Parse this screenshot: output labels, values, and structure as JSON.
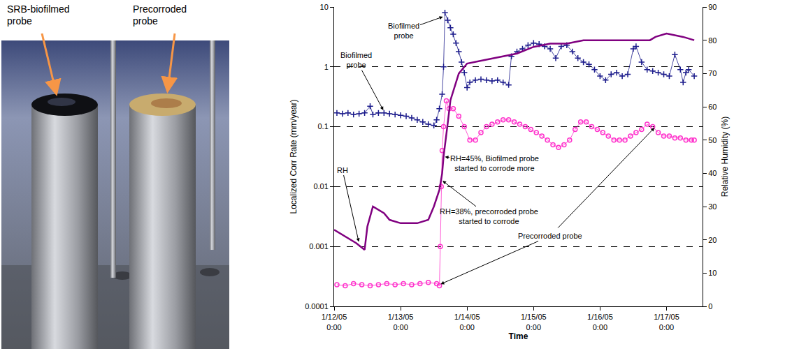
{
  "photo": {
    "labels": [
      "SRB-biofilmed probe",
      "Precorroded probe"
    ]
  },
  "chart_data": {
    "type": "line",
    "log": "y",
    "grid": true,
    "x_label": "Time",
    "y_label": "Localized Corr Rate (mm/year)",
    "y2_label": "Relative Humidity (%)",
    "xlim": [
      "2005-01-12 00:00",
      "2005-01-17 13:00"
    ],
    "xticks": [
      {
        "value": "2005-01-12 00:00",
        "label": "1/12/05 0:00"
      },
      {
        "value": "2005-01-13 00:00",
        "label": "1/13/05 0:00"
      },
      {
        "value": "2005-01-14 00:00",
        "label": "1/14/05 0:00"
      },
      {
        "value": "2005-01-15 00:00",
        "label": "1/15/05 0:00"
      },
      {
        "value": "2005-01-16 00:00",
        "label": "1/16/05 0:00"
      },
      {
        "value": "2005-01-17 00:00",
        "label": "1/17/05 0:00"
      }
    ],
    "ylim": [
      0.0001,
      10
    ],
    "yticks": [
      0.0001,
      0.001,
      0.01,
      0.1,
      1,
      10
    ],
    "y2lim": [
      0,
      90
    ],
    "y2ticks": [
      0,
      10,
      20,
      30,
      40,
      50,
      60,
      70,
      80,
      90
    ],
    "series": [
      {
        "name": "Biofilmed probe",
        "color": "#1c1c8c",
        "marker": "cross",
        "line_style": "solid",
        "x": [
          "2005-01-12 01:00",
          "2005-01-12 03:00",
          "2005-01-12 05:00",
          "2005-01-12 07:00",
          "2005-01-12 09:00",
          "2005-01-12 11:00",
          "2005-01-12 13:00",
          "2005-01-12 14:00",
          "2005-01-12 16:00",
          "2005-01-12 18:00",
          "2005-01-12 20:00",
          "2005-01-12 22:00",
          "2005-01-13 00:00",
          "2005-01-13 02:00",
          "2005-01-13 04:00",
          "2005-01-13 06:00",
          "2005-01-13 08:00",
          "2005-01-13 10:00",
          "2005-01-13 12:00",
          "2005-01-13 13:00",
          "2005-01-13 14:00",
          "2005-01-13 15:00",
          "2005-01-13 15:30",
          "2005-01-13 16:00",
          "2005-01-13 17:00",
          "2005-01-13 18:00",
          "2005-01-13 19:00",
          "2005-01-13 20:00",
          "2005-01-13 21:00",
          "2005-01-13 22:00",
          "2005-01-13 23:00",
          "2005-01-14 00:00",
          "2005-01-14 01:00",
          "2005-01-14 03:00",
          "2005-01-14 05:00",
          "2005-01-14 07:00",
          "2005-01-14 09:00",
          "2005-01-14 11:00",
          "2005-01-14 13:00",
          "2005-01-14 15:00",
          "2005-01-14 16:00",
          "2005-01-14 18:00",
          "2005-01-14 20:00",
          "2005-01-14 22:00",
          "2005-01-15 00:00",
          "2005-01-15 02:00",
          "2005-01-15 04:00",
          "2005-01-15 06:00",
          "2005-01-15 08:00",
          "2005-01-15 10:00",
          "2005-01-15 12:00",
          "2005-01-15 14:00",
          "2005-01-15 16:00",
          "2005-01-15 18:00",
          "2005-01-15 20:00",
          "2005-01-15 22:00",
          "2005-01-16 00:00",
          "2005-01-16 02:00",
          "2005-01-16 04:00",
          "2005-01-16 06:00",
          "2005-01-16 08:00",
          "2005-01-16 10:00",
          "2005-01-16 12:00",
          "2005-01-16 13:00",
          "2005-01-16 15:00",
          "2005-01-16 17:00",
          "2005-01-16 19:00",
          "2005-01-16 21:00",
          "2005-01-16 23:00",
          "2005-01-17 01:00",
          "2005-01-17 03:00",
          "2005-01-17 05:00",
          "2005-01-17 06:00",
          "2005-01-17 07:00",
          "2005-01-17 08:00",
          "2005-01-17 10:00"
        ],
        "values": [
          0.17,
          0.165,
          0.17,
          0.16,
          0.165,
          0.17,
          0.22,
          0.16,
          0.17,
          0.17,
          0.165,
          0.16,
          0.155,
          0.15,
          0.14,
          0.13,
          0.12,
          0.11,
          0.105,
          0.13,
          0.2,
          0.35,
          1.0,
          8,
          6,
          4.5,
          3.5,
          2.5,
          1.8,
          1.2,
          0.8,
          0.45,
          0.55,
          0.6,
          0.62,
          0.6,
          0.58,
          0.6,
          0.55,
          0.5,
          1.5,
          1.8,
          2.0,
          2.3,
          2.5,
          2.4,
          2.2,
          2.0,
          1.4,
          2.2,
          2.3,
          1.8,
          1.4,
          1.2,
          1.1,
          0.9,
          0.7,
          0.6,
          0.75,
          0.8,
          0.7,
          0.75,
          2.0,
          2.2,
          1.2,
          0.9,
          0.85,
          0.8,
          0.75,
          0.7,
          1.6,
          0.9,
          0.55,
          0.8,
          0.9,
          0.7
        ]
      },
      {
        "name": "Precorroded probe",
        "color": "#ff33cc",
        "marker": "circle-open",
        "line_style": "solid",
        "x": [
          "2005-01-12 01:00",
          "2005-01-12 04:00",
          "2005-01-12 07:00",
          "2005-01-12 10:00",
          "2005-01-12 13:00",
          "2005-01-12 16:00",
          "2005-01-12 19:00",
          "2005-01-12 22:00",
          "2005-01-13 01:00",
          "2005-01-13 04:00",
          "2005-01-13 07:00",
          "2005-01-13 10:00",
          "2005-01-13 13:00",
          "2005-01-13 14:00",
          "2005-01-13 14:20",
          "2005-01-13 14:40",
          "2005-01-13 15:00",
          "2005-01-13 15:30",
          "2005-01-13 16:30",
          "2005-01-13 17:30",
          "2005-01-13 19:00",
          "2005-01-13 21:00",
          "2005-01-13 23:00",
          "2005-01-14 01:00",
          "2005-01-14 03:00",
          "2005-01-14 05:00",
          "2005-01-14 07:00",
          "2005-01-14 09:00",
          "2005-01-14 11:00",
          "2005-01-14 13:00",
          "2005-01-14 15:00",
          "2005-01-14 17:00",
          "2005-01-14 19:00",
          "2005-01-14 21:00",
          "2005-01-14 23:00",
          "2005-01-15 01:00",
          "2005-01-15 03:00",
          "2005-01-15 05:00",
          "2005-01-15 07:00",
          "2005-01-15 09:00",
          "2005-01-15 11:00",
          "2005-01-15 13:00",
          "2005-01-15 15:00",
          "2005-01-15 17:00",
          "2005-01-15 19:00",
          "2005-01-15 21:00",
          "2005-01-15 23:00",
          "2005-01-16 01:00",
          "2005-01-16 03:00",
          "2005-01-16 05:00",
          "2005-01-16 07:00",
          "2005-01-16 09:00",
          "2005-01-16 11:00",
          "2005-01-16 13:00",
          "2005-01-16 15:00",
          "2005-01-16 17:00",
          "2005-01-16 19:00",
          "2005-01-16 21:00",
          "2005-01-16 23:00",
          "2005-01-17 01:00",
          "2005-01-17 03:00",
          "2005-01-17 05:00",
          "2005-01-17 07:00",
          "2005-01-17 09:00",
          "2005-01-17 10:00"
        ],
        "values": [
          0.00023,
          0.00022,
          0.00024,
          0.00023,
          0.00022,
          0.00023,
          0.00024,
          0.00023,
          0.00024,
          0.00023,
          0.00024,
          0.00025,
          0.00024,
          0.00022,
          0.001,
          0.01,
          0.04,
          0.1,
          0.27,
          0.2,
          0.2,
          0.15,
          0.1,
          0.06,
          0.06,
          0.08,
          0.1,
          0.11,
          0.12,
          0.13,
          0.13,
          0.12,
          0.11,
          0.1,
          0.09,
          0.08,
          0.07,
          0.06,
          0.05,
          0.045,
          0.05,
          0.06,
          0.09,
          0.12,
          0.12,
          0.1,
          0.09,
          0.08,
          0.07,
          0.06,
          0.06,
          0.06,
          0.07,
          0.08,
          0.09,
          0.11,
          0.1,
          0.08,
          0.07,
          0.07,
          0.065,
          0.065,
          0.06,
          0.06,
          0.06
        ]
      },
      {
        "name": "RH",
        "color": "#800080",
        "marker": "none",
        "line_style": "solid",
        "axis": "y2",
        "x": [
          "2005-01-12 00:00",
          "2005-01-12 04:00",
          "2005-01-12 08:00",
          "2005-01-12 11:00",
          "2005-01-12 12:00",
          "2005-01-12 14:00",
          "2005-01-12 18:00",
          "2005-01-12 20:00",
          "2005-01-13 00:00",
          "2005-01-13 06:00",
          "2005-01-13 10:00",
          "2005-01-13 12:00",
          "2005-01-13 14:00",
          "2005-01-13 15:00",
          "2005-01-13 15:30",
          "2005-01-13 17:00",
          "2005-01-13 18:00",
          "2005-01-13 21:00",
          "2005-01-14 00:00",
          "2005-01-14 06:00",
          "2005-01-14 12:00",
          "2005-01-14 18:00",
          "2005-01-15 00:00",
          "2005-01-15 06:00",
          "2005-01-15 12:00",
          "2005-01-15 18:00",
          "2005-01-16 00:00",
          "2005-01-16 12:00",
          "2005-01-16 18:00",
          "2005-01-16 20:00",
          "2005-01-17 00:00",
          "2005-01-17 06:00",
          "2005-01-17 10:00"
        ],
        "values": [
          23,
          21,
          19,
          17,
          24,
          30,
          28,
          26,
          25,
          25,
          26,
          30,
          35,
          40,
          45,
          55,
          62,
          70,
          73,
          74,
          75,
          76,
          78,
          79,
          79,
          80,
          80,
          80,
          80,
          81,
          82,
          81,
          80
        ]
      }
    ],
    "annotations": [
      {
        "text": "Biofilmed probe",
        "arrows": [
          {
            "x": "2005-01-13 15:45",
            "y": 7,
            "axis": "y"
          }
        ]
      },
      {
        "text": "Biofilmed probe",
        "arrows": [
          {
            "x": "2005-01-12 18:00",
            "y": 0.18,
            "axis": "y"
          }
        ]
      },
      {
        "text": "RH",
        "arrows": [
          {
            "x": "2005-01-12 09:00",
            "y": 19,
            "axis": "y2"
          }
        ]
      },
      {
        "text": "RH=45%, Biofilmed probe started to corrode more",
        "arrows": [
          {
            "x": "2005-01-13 15:30",
            "y": 45,
            "axis": "y2"
          }
        ]
      },
      {
        "text": "RH=38%, precorroded probe started to corrode",
        "arrows": [
          {
            "x": "2005-01-13 14:45",
            "y": 38,
            "axis": "y2"
          }
        ]
      },
      {
        "text": "Precorroded probe",
        "arrows": [
          {
            "x": "2005-01-13 14:00",
            "y": 0.00023,
            "axis": "y"
          },
          {
            "x": "2005-01-16 20:00",
            "y": 0.1,
            "axis": "y"
          }
        ]
      }
    ]
  }
}
